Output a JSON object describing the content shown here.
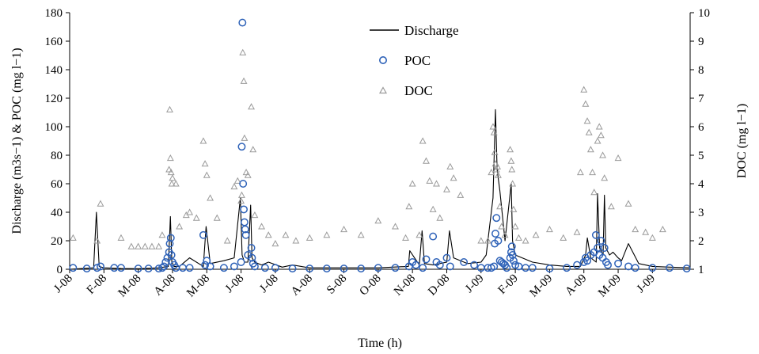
{
  "chart_data": {
    "type": "line",
    "title": "",
    "xlabel": "Time (h)",
    "ylabel_left": "Discharge (m3s−1) & POC (mg l−1)",
    "ylabel_right": "DOC (mg l−1)",
    "x_unit": "months since J-08",
    "xlim": [
      0,
      18.1
    ],
    "ylim_left": [
      0,
      180
    ],
    "ylim_right": [
      1,
      10
    ],
    "yticks_left": [
      0,
      20,
      40,
      60,
      80,
      100,
      120,
      140,
      160,
      180
    ],
    "yticks_right": [
      1,
      2,
      3,
      4,
      5,
      6,
      7,
      8,
      9,
      10
    ],
    "x_tick_labels": [
      "J-08",
      "F-08",
      "M-08",
      "A-08",
      "M-08",
      "J-08",
      "J-08",
      "A-08",
      "S-08",
      "O-08",
      "N-08",
      "D-08",
      "J-09",
      "F-09",
      "M-09",
      "A-09",
      "M-09",
      "J-09"
    ],
    "grid": false,
    "legend_position": "top-center",
    "legend": [
      {
        "name": "Discharge",
        "marker": "line"
      },
      {
        "name": "POC",
        "marker": "circle"
      },
      {
        "name": "DOC",
        "marker": "triangle"
      }
    ],
    "colors": {
      "discharge": "#000000",
      "poc": "#2e62b8",
      "doc": "#9a9a9a",
      "axis": "#000000"
    },
    "series": [
      {
        "name": "Discharge",
        "axis": "left",
        "x": [
          0,
          0.7,
          0.78,
          0.86,
          1.0,
          1.5,
          2.0,
          2.6,
          2.88,
          2.94,
          2.98,
          3.05,
          3.2,
          3.5,
          3.9,
          3.98,
          4.1,
          4.5,
          4.8,
          4.98,
          5.03,
          5.1,
          5.2,
          5.28,
          5.32,
          5.4,
          5.6,
          5.8,
          6.2,
          6.5,
          7.0,
          8.0,
          9.0,
          9.88,
          9.92,
          10.2,
          10.28,
          10.35,
          10.6,
          10.8,
          11.0,
          11.08,
          11.2,
          11.6,
          12.0,
          12.15,
          12.35,
          12.42,
          12.47,
          12.55,
          12.7,
          12.88,
          12.92,
          13.0,
          13.2,
          13.5,
          14.0,
          14.5,
          14.9,
          15.05,
          15.1,
          15.2,
          15.36,
          15.4,
          15.46,
          15.56,
          15.6,
          15.64,
          15.75,
          15.85,
          16.0,
          16.1,
          16.3,
          16.6,
          17.0,
          17.5,
          18.1
        ],
        "values": [
          0,
          1,
          40,
          2,
          1,
          0.5,
          0.4,
          1,
          2,
          37,
          5,
          2,
          2,
          8,
          2,
          30,
          4,
          6,
          8,
          50,
          10,
          5,
          5,
          45,
          8,
          5,
          3,
          5,
          1.5,
          3,
          1,
          1,
          1,
          2,
          13,
          3,
          27,
          4,
          3,
          4,
          5,
          27,
          8,
          4,
          5,
          10,
          50,
          112,
          70,
          55,
          20,
          60,
          20,
          10,
          8,
          5,
          3,
          2,
          2,
          10,
          22,
          8,
          5,
          53,
          15,
          10,
          52,
          15,
          10,
          12,
          8,
          6,
          18,
          4,
          2,
          1.5,
          1
        ]
      },
      {
        "name": "POC",
        "axis": "left",
        "x": [
          0.1,
          0.5,
          0.8,
          0.9,
          1.3,
          1.5,
          2.0,
          2.3,
          2.6,
          2.7,
          2.75,
          2.8,
          2.85,
          2.9,
          2.92,
          2.95,
          2.97,
          3.0,
          3.05,
          3.1,
          3.3,
          3.5,
          3.9,
          3.95,
          4.0,
          4.1,
          4.5,
          4.8,
          5.0,
          5.02,
          5.04,
          5.06,
          5.08,
          5.1,
          5.12,
          5.14,
          5.2,
          5.3,
          5.32,
          5.35,
          5.4,
          5.7,
          6.0,
          6.5,
          7.0,
          7.5,
          8.0,
          8.5,
          9.0,
          9.5,
          9.9,
          10.0,
          10.1,
          10.3,
          10.4,
          10.6,
          10.7,
          10.8,
          11.0,
          11.1,
          11.5,
          11.8,
          12.0,
          12.2,
          12.3,
          12.38,
          12.4,
          12.42,
          12.45,
          12.5,
          12.55,
          12.6,
          12.65,
          12.7,
          12.75,
          12.85,
          12.88,
          12.9,
          12.92,
          12.95,
          13.0,
          13.1,
          13.3,
          13.5,
          14.0,
          14.5,
          14.8,
          15.0,
          15.05,
          15.1,
          15.2,
          15.3,
          15.35,
          15.4,
          15.45,
          15.5,
          15.55,
          15.6,
          15.65,
          15.7,
          16.0,
          16.3,
          16.5,
          17.0,
          17.5,
          18.0
        ],
        "values": [
          1,
          0.5,
          1,
          2,
          1,
          1,
          0.5,
          0.5,
          0.5,
          1,
          2,
          5,
          8,
          12,
          18,
          22,
          10,
          5,
          3,
          1,
          1,
          1,
          24,
          3,
          6,
          2,
          1,
          2,
          5,
          86,
          173,
          60,
          42,
          33,
          28,
          24,
          10,
          15,
          8,
          4,
          2,
          1,
          1,
          0.5,
          0.5,
          0.5,
          0.5,
          0.5,
          1,
          1,
          2,
          5,
          3,
          1,
          7,
          23,
          5,
          3,
          8,
          2,
          5,
          3,
          1,
          1,
          1,
          2,
          18,
          25,
          36,
          20,
          6,
          5,
          4,
          3,
          1,
          8,
          12,
          16,
          10,
          6,
          3,
          2,
          1,
          1,
          0.5,
          1,
          3,
          5,
          8,
          6,
          10,
          12,
          24,
          15,
          10,
          20,
          8,
          15,
          5,
          3,
          4,
          2,
          1,
          1,
          1,
          0.5
        ]
      },
      {
        "name": "DOC",
        "axis": "right",
        "x": [
          0.1,
          0.8,
          0.9,
          1.5,
          1.8,
          2.0,
          2.2,
          2.4,
          2.6,
          2.7,
          2.9,
          2.92,
          2.94,
          2.96,
          2.98,
          3.0,
          3.1,
          3.2,
          3.4,
          3.5,
          3.7,
          3.9,
          3.95,
          4.0,
          4.1,
          4.3,
          4.6,
          4.8,
          4.9,
          5.0,
          5.02,
          5.05,
          5.08,
          5.1,
          5.15,
          5.2,
          5.3,
          5.35,
          5.4,
          5.6,
          5.8,
          6.0,
          6.3,
          6.6,
          7.0,
          7.5,
          8.0,
          8.5,
          9.0,
          9.5,
          9.8,
          9.9,
          10.0,
          10.2,
          10.3,
          10.4,
          10.5,
          10.6,
          10.7,
          10.8,
          11.0,
          11.1,
          11.2,
          11.4,
          12.0,
          12.2,
          12.3,
          12.35,
          12.38,
          12.4,
          12.42,
          12.45,
          12.48,
          12.5,
          12.55,
          12.6,
          12.7,
          12.85,
          12.88,
          12.9,
          12.92,
          12.95,
          13.0,
          13.1,
          13.3,
          13.6,
          14.0,
          14.4,
          14.8,
          14.9,
          15.0,
          15.05,
          15.1,
          15.15,
          15.2,
          15.25,
          15.3,
          15.4,
          15.45,
          15.5,
          15.55,
          15.6,
          15.8,
          16.0,
          16.3,
          16.5,
          16.8,
          17.0,
          17.3
        ],
        "values": [
          2.1,
          2,
          3.3,
          2.1,
          1.8,
          1.8,
          1.8,
          1.8,
          1.8,
          2.2,
          4.5,
          6.6,
          4.9,
          4.4,
          4.0,
          4.2,
          4.0,
          2.5,
          2.9,
          3.0,
          2.8,
          5.5,
          4.7,
          4.3,
          3.5,
          2.8,
          2.0,
          3.9,
          4.1,
          3.4,
          3.6,
          8.6,
          7.6,
          5.6,
          4.4,
          4.3,
          6.7,
          5.2,
          2.9,
          2.5,
          2.2,
          1.9,
          2.2,
          2.0,
          2.1,
          2.2,
          2.4,
          2.2,
          2.7,
          2.5,
          2.1,
          3.2,
          4.0,
          2.2,
          5.5,
          4.8,
          4.1,
          3.1,
          4.0,
          2.8,
          3.8,
          4.6,
          4.2,
          3.6,
          2.0,
          2.0,
          4.4,
          6.0,
          5.8,
          5.1,
          4.7,
          4.5,
          4.6,
          4.3,
          3.2,
          2.5,
          2.2,
          5.2,
          4.8,
          4.5,
          4.0,
          3.1,
          2.5,
          2.1,
          2.0,
          2.2,
          2.4,
          2.1,
          2.3,
          4.4,
          7.3,
          6.8,
          6.2,
          5.8,
          5.2,
          4.4,
          3.7,
          5.5,
          6.0,
          5.7,
          5.0,
          4.2,
          3.2,
          4.9,
          3.3,
          2.4,
          2.3,
          2.1,
          2.4
        ]
      }
    ]
  }
}
